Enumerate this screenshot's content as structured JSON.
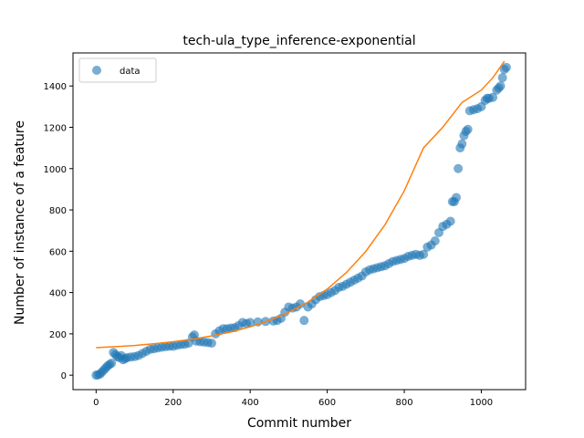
{
  "chart_data": {
    "type": "scatter",
    "title": "tech-ula_type_inference-exponential",
    "xlabel": "Commit number",
    "ylabel": "Number of instance of a feature",
    "xlim": [
      -60,
      1115
    ],
    "ylim": [
      -70,
      1560
    ],
    "xticks": [
      0,
      200,
      400,
      600,
      800,
      1000
    ],
    "yticks": [
      0,
      200,
      400,
      600,
      800,
      1000,
      1200,
      1400
    ],
    "grid": false,
    "legend_position": "top-left",
    "colors": {
      "data": "#1f77b4",
      "fit": "#ff7f0e"
    },
    "series": [
      {
        "name": "data",
        "kind": "scatter",
        "points": [
          [
            0,
            0
          ],
          [
            5,
            2
          ],
          [
            10,
            5
          ],
          [
            15,
            15
          ],
          [
            20,
            25
          ],
          [
            25,
            35
          ],
          [
            30,
            45
          ],
          [
            35,
            52
          ],
          [
            40,
            58
          ],
          [
            45,
            110
          ],
          [
            50,
            100
          ],
          [
            55,
            90
          ],
          [
            60,
            85
          ],
          [
            65,
            95
          ],
          [
            70,
            75
          ],
          [
            75,
            80
          ],
          [
            80,
            85
          ],
          [
            90,
            88
          ],
          [
            100,
            90
          ],
          [
            110,
            95
          ],
          [
            120,
            105
          ],
          [
            130,
            115
          ],
          [
            140,
            125
          ],
          [
            150,
            128
          ],
          [
            160,
            132
          ],
          [
            170,
            135
          ],
          [
            180,
            138
          ],
          [
            190,
            140
          ],
          [
            200,
            140
          ],
          [
            210,
            145
          ],
          [
            220,
            148
          ],
          [
            230,
            150
          ],
          [
            240,
            155
          ],
          [
            250,
            185
          ],
          [
            255,
            195
          ],
          [
            260,
            165
          ],
          [
            270,
            162
          ],
          [
            280,
            160
          ],
          [
            290,
            158
          ],
          [
            300,
            155
          ],
          [
            310,
            200
          ],
          [
            320,
            215
          ],
          [
            330,
            225
          ],
          [
            340,
            225
          ],
          [
            350,
            228
          ],
          [
            360,
            230
          ],
          [
            370,
            240
          ],
          [
            380,
            255
          ],
          [
            390,
            250
          ],
          [
            400,
            255
          ],
          [
            420,
            258
          ],
          [
            440,
            260
          ],
          [
            460,
            262
          ],
          [
            470,
            265
          ],
          [
            480,
            275
          ],
          [
            490,
            305
          ],
          [
            500,
            330
          ],
          [
            510,
            325
          ],
          [
            520,
            330
          ],
          [
            530,
            345
          ],
          [
            540,
            265
          ],
          [
            550,
            330
          ],
          [
            560,
            345
          ],
          [
            570,
            365
          ],
          [
            580,
            380
          ],
          [
            590,
            385
          ],
          [
            600,
            390
          ],
          [
            610,
            400
          ],
          [
            620,
            410
          ],
          [
            630,
            425
          ],
          [
            640,
            430
          ],
          [
            650,
            440
          ],
          [
            660,
            450
          ],
          [
            670,
            460
          ],
          [
            680,
            470
          ],
          [
            690,
            480
          ],
          [
            700,
            500
          ],
          [
            710,
            510
          ],
          [
            720,
            515
          ],
          [
            730,
            520
          ],
          [
            740,
            525
          ],
          [
            750,
            530
          ],
          [
            760,
            540
          ],
          [
            770,
            550
          ],
          [
            780,
            555
          ],
          [
            790,
            560
          ],
          [
            800,
            565
          ],
          [
            810,
            575
          ],
          [
            820,
            580
          ],
          [
            830,
            585
          ],
          [
            840,
            580
          ],
          [
            850,
            585
          ],
          [
            860,
            620
          ],
          [
            870,
            630
          ],
          [
            880,
            650
          ],
          [
            890,
            690
          ],
          [
            900,
            720
          ],
          [
            910,
            730
          ],
          [
            920,
            745
          ],
          [
            925,
            840
          ],
          [
            930,
            840
          ],
          [
            935,
            860
          ],
          [
            940,
            1000
          ],
          [
            945,
            1100
          ],
          [
            950,
            1120
          ],
          [
            955,
            1160
          ],
          [
            960,
            1180
          ],
          [
            965,
            1190
          ],
          [
            970,
            1280
          ],
          [
            980,
            1285
          ],
          [
            990,
            1290
          ],
          [
            1000,
            1300
          ],
          [
            1010,
            1330
          ],
          [
            1015,
            1340
          ],
          [
            1020,
            1340
          ],
          [
            1030,
            1345
          ],
          [
            1040,
            1380
          ],
          [
            1045,
            1390
          ],
          [
            1050,
            1400
          ],
          [
            1055,
            1440
          ],
          [
            1060,
            1480
          ],
          [
            1065,
            1490
          ]
        ]
      },
      {
        "name": "",
        "kind": "line",
        "points": [
          [
            0,
            133
          ],
          [
            50,
            138
          ],
          [
            100,
            144
          ],
          [
            150,
            152
          ],
          [
            200,
            162
          ],
          [
            250,
            174
          ],
          [
            300,
            190
          ],
          [
            350,
            209
          ],
          [
            400,
            234
          ],
          [
            450,
            265
          ],
          [
            500,
            304
          ],
          [
            550,
            354
          ],
          [
            600,
            417
          ],
          [
            650,
            497
          ],
          [
            700,
            599
          ],
          [
            750,
            728
          ],
          [
            800,
            892
          ],
          [
            850,
            1100
          ],
          [
            900,
            1200
          ],
          [
            950,
            1320
          ],
          [
            1000,
            1380
          ],
          [
            1030,
            1440
          ],
          [
            1060,
            1520
          ]
        ]
      }
    ]
  }
}
